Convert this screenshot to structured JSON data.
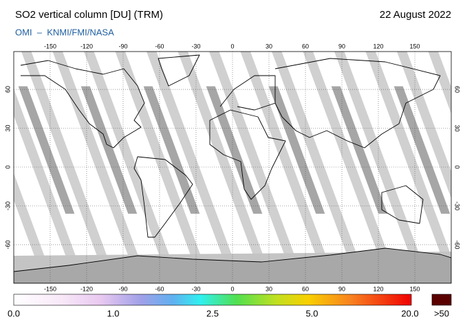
{
  "header": {
    "title": "SO2 vertical column [DU] (TRM)",
    "date": "22 August 2022",
    "subtitle": "OMI  –  KNMI/FMI/NASA"
  },
  "map": {
    "lon_ticks": [
      -150,
      -120,
      -90,
      -60,
      -30,
      0,
      30,
      60,
      90,
      120,
      150
    ],
    "lat_ticks": [
      60,
      30,
      0,
      -30,
      -60
    ]
  },
  "colorbar": {
    "labels": [
      "0.0",
      "1.0",
      "2.5",
      "5.0",
      "20.0"
    ],
    "overflow_label": ">50"
  }
}
